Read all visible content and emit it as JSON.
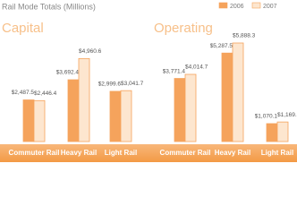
{
  "title": "Rail Mode Totals (Millions)",
  "legend": [
    {
      "name": "2006",
      "color": "#f5a35c"
    },
    {
      "name": "2007",
      "color": "#fde6cf"
    }
  ],
  "chart_data": [
    {
      "type": "bar",
      "title": "Capital",
      "categories": [
        "Commuter Rail",
        "Heavy Rail",
        "Light Rail"
      ],
      "series": [
        {
          "values": [
            2487.5,
            3692.4,
            2999.6
          ],
          "value_labels": [
            "$2,487.5",
            "$3,692.4",
            "$2,999.6"
          ]
        },
        {
          "values": [
            2446.4,
            4960.6,
            3041.7
          ],
          "value_labels": [
            "$2,446.4",
            "$4,960.6",
            "$3,041.7"
          ]
        }
      ]
    },
    {
      "type": "bar",
      "title": "Operating",
      "categories": [
        "Commuter Rail",
        "Heavy Rail",
        "Light Rail"
      ],
      "series": [
        {
          "values": [
            3771.4,
            5287.5,
            1070.1
          ],
          "value_labels": [
            "$3,771.4",
            "$5,287.5",
            "$1,070.1"
          ]
        },
        {
          "values": [
            4014.7,
            5888.3,
            1169.5
          ],
          "value_labels": [
            "$4,014.7",
            "$5,888.3",
            "$1,169.5"
          ]
        }
      ]
    }
  ]
}
